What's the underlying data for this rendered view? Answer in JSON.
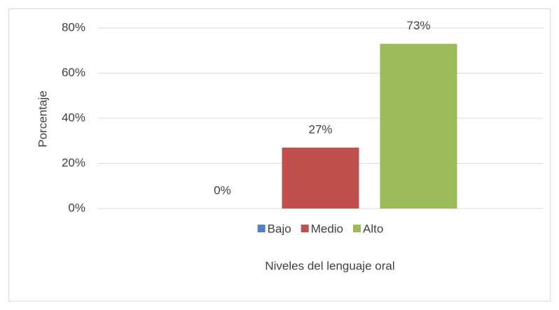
{
  "chart_data": {
    "type": "bar",
    "categories": [
      null
    ],
    "series": [
      {
        "name": "Bajo",
        "color": "#4f81bd",
        "values": [
          0
        ],
        "value_labels": [
          "0%"
        ]
      },
      {
        "name": "Medio",
        "color": "#c0504d",
        "values": [
          27
        ],
        "value_labels": [
          "27%"
        ]
      },
      {
        "name": "Alto",
        "color": "#9bbb59",
        "values": [
          73
        ],
        "value_labels": [
          "73%"
        ]
      }
    ],
    "y_label": "Porcentaje",
    "x_label": "Niveles del lenguaje oral",
    "ylim": [
      0,
      80
    ],
    "yticks": [
      {
        "value": 0,
        "label": "0%"
      },
      {
        "value": 20,
        "label": "20%"
      },
      {
        "value": 40,
        "label": "40%"
      },
      {
        "value": 60,
        "label": "60%"
      },
      {
        "value": 80,
        "label": "80%"
      }
    ],
    "grid": true,
    "legend": "bottom"
  }
}
